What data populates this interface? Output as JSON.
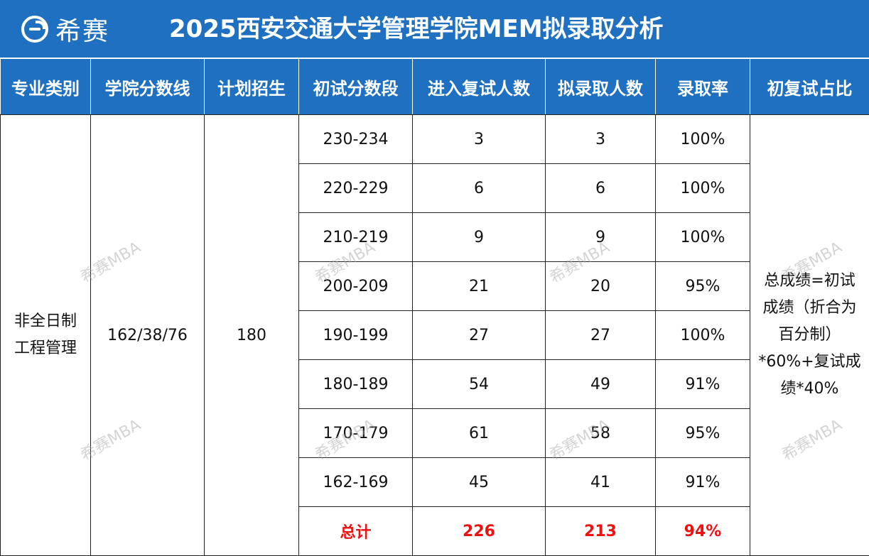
{
  "header": {
    "brand": "希赛",
    "title": "2025西安交通大学管理学院MEM拟录取分析"
  },
  "table": {
    "columns": [
      "专业类别",
      "学院分数线",
      "计划招生",
      "初试分数段",
      "进入复试人数",
      "拟录取人数",
      "录取率",
      "初复试占比"
    ],
    "category": "非全日制工程管理",
    "cutoff": "162/38/76",
    "plan": "180",
    "rows": [
      {
        "range": "230-234",
        "retest": "3",
        "admitted": "3",
        "rate": "100%"
      },
      {
        "range": "220-229",
        "retest": "6",
        "admitted": "6",
        "rate": "100%"
      },
      {
        "range": "210-219",
        "retest": "9",
        "admitted": "9",
        "rate": "100%"
      },
      {
        "range": "200-209",
        "retest": "21",
        "admitted": "20",
        "rate": "95%"
      },
      {
        "range": "190-199",
        "retest": "27",
        "admitted": "27",
        "rate": "100%"
      },
      {
        "range": "180-189",
        "retest": "54",
        "admitted": "49",
        "rate": "91%"
      },
      {
        "range": "170-179",
        "retest": "61",
        "admitted": "58",
        "rate": "95%"
      },
      {
        "range": "162-169",
        "retest": "45",
        "admitted": "41",
        "rate": "91%"
      }
    ],
    "total": {
      "label": "总计",
      "retest": "226",
      "admitted": "213",
      "rate": "94%"
    },
    "ratio_note": "总成绩=初试成绩（折合为百分制）*60%+复试成绩*40%"
  },
  "watermark": "希赛MBA"
}
